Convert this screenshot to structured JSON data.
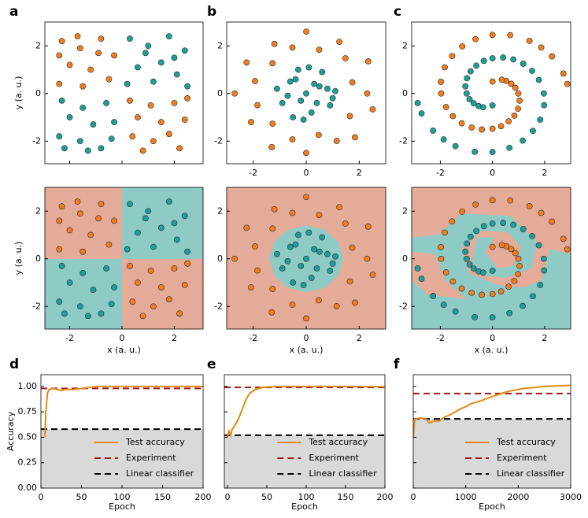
{
  "chart_data": [
    {
      "type": "scatter",
      "panel": "a",
      "ylabel": "y (a. u.)",
      "xlabel": "x (a. u.)",
      "xtick_labels_top": false,
      "xlim": [
        -2.95,
        3.1
      ],
      "ylim": [
        -2.95,
        3
      ],
      "xticks": [
        -2,
        0,
        2
      ],
      "yticks": [
        -2,
        0,
        2
      ],
      "background": "#e3ab98",
      "region_color": "#8ecbc7",
      "regions": [
        [
          [
            0,
            0
          ],
          [
            3.1,
            0
          ],
          [
            3.1,
            3
          ],
          [
            0,
            3
          ]
        ],
        [
          [
            -2.95,
            -2.95
          ],
          [
            0,
            -2.95
          ],
          [
            0,
            0
          ],
          [
            -2.95,
            0
          ]
        ]
      ],
      "series": [
        {
          "color": "#f07d1f",
          "x": [
            -2.3,
            -1.6,
            -0.8,
            -0.3,
            -2.0,
            -1.2,
            -0.5,
            -2.4,
            -1.5,
            -0.9,
            -2.4,
            -1.7,
            0.3,
            1.1,
            2.0,
            2.4,
            1.5,
            0.6,
            0.4,
            1.2,
            2.2,
            1.8,
            0.8,
            2.5
          ],
          "values": [
            2.2,
            1.9,
            2.3,
            1.6,
            1.2,
            1.0,
            0.6,
            0.4,
            0.3,
            1.7,
            1.6,
            2.4,
            -0.3,
            -0.5,
            -0.4,
            -1.1,
            -1.2,
            -1.0,
            -1.8,
            -2.0,
            -2.3,
            -1.7,
            -2.4,
            -0.2
          ]
        },
        {
          "color": "#1f9e98",
          "x": [
            0.3,
            1.0,
            1.8,
            2.4,
            1.5,
            0.6,
            0.2,
            1.2,
            2.1,
            2.5,
            0.9,
            2.0,
            -2.3,
            -1.5,
            -0.6,
            -0.3,
            -1.1,
            -2.0,
            -2.4,
            -1.6,
            -0.8,
            -0.4,
            -1.3,
            -2.2
          ],
          "values": [
            2.3,
            2.0,
            2.4,
            1.8,
            1.3,
            1.1,
            0.4,
            0.5,
            0.8,
            0.3,
            1.7,
            1.5,
            -0.3,
            -0.6,
            -0.4,
            -1.2,
            -1.3,
            -1.0,
            -1.8,
            -2.0,
            -2.3,
            -1.9,
            -2.4,
            -2.3
          ]
        }
      ]
    },
    {
      "type": "scatter",
      "panel": "b",
      "xlabel": "x (a. u.)",
      "xtick_labels_top": true,
      "xlim": [
        -3,
        3
      ],
      "ylim": [
        -2.95,
        3
      ],
      "xticks": [
        -2,
        0,
        2
      ],
      "yticks": [
        -2,
        0,
        2
      ],
      "background": "#e3ab98",
      "region_color": "#8ecbc7",
      "regions": [
        [
          [
            1.4,
            0
          ],
          [
            1.21,
            0.7
          ],
          [
            0.7,
            1.21
          ],
          [
            0,
            1.4
          ],
          [
            -0.7,
            1.21
          ],
          [
            -1.21,
            0.7
          ],
          [
            -1.4,
            0
          ],
          [
            -1.21,
            -0.7
          ],
          [
            -0.7,
            -1.21
          ],
          [
            0,
            -1.4
          ],
          [
            0.7,
            -1.21
          ],
          [
            1.21,
            -0.7
          ]
        ]
      ],
      "series": [
        {
          "color": "#f07d1f",
          "x": [
            2.3,
            1.74,
            2.34,
            1.48,
            1.25,
            0.49,
            0,
            -0.52,
            -1.2,
            -1.27,
            -2.25,
            -1.93,
            -2.7,
            -1.84,
            -2.08,
            -1.27,
            -1.3,
            -0.52,
            0,
            0.47,
            1.15,
            1.84,
            1.65,
            2.51
          ],
          "values": [
            0,
            0.47,
            1.35,
            1.48,
            2.17,
            1.84,
            2.6,
            1.93,
            2.08,
            1.27,
            1.3,
            0.52,
            0,
            -0.49,
            -1.2,
            -1.27,
            -2.25,
            -1.93,
            -2.5,
            -1.74,
            -1.99,
            -1.84,
            -0.95,
            -0.67
          ]
        },
        {
          "color": "#1f9e98",
          "x": [
            0,
            0.5,
            -0.6,
            0.2,
            -0.9,
            0.9,
            -0.3,
            0.6,
            1.1,
            -1.1,
            -0.5,
            0.3,
            -0.2,
            0.8,
            -0.7,
            0.1,
            0.4,
            -0.4,
            1.0,
            -0.1
          ],
          "values": [
            0,
            0.3,
            0.5,
            -0.8,
            -0.4,
            -0.5,
            1.0,
            0.9,
            0.1,
            0.2,
            -1.0,
            0.4,
            -0.3,
            0.2,
            -0.1,
            1.1,
            -0.4,
            0.6,
            -0.2,
            -1.1
          ]
        }
      ]
    },
    {
      "type": "scatter",
      "panel": "c",
      "xlabel": "x (a. u.)",
      "xtick_labels_top": true,
      "xlim": [
        -3.1,
        3
      ],
      "ylim": [
        -2.95,
        3
      ],
      "xticks": [
        -2,
        0,
        2
      ],
      "yticks": [
        -2,
        0,
        2
      ],
      "background": "#8ecbc7",
      "region_color": "#e3ab98",
      "regions": [
        [
          [
            -3.1,
            3
          ],
          [
            3,
            3
          ],
          [
            3,
            0.2
          ],
          [
            2.2,
            0.4
          ],
          [
            1.9,
            -0.9
          ],
          [
            1.2,
            -1.2
          ],
          [
            0.2,
            -1.1
          ],
          [
            -0.9,
            -0.6
          ],
          [
            -1.2,
            0.4
          ],
          [
            -0.4,
            1.2
          ],
          [
            0.6,
            1.1
          ],
          [
            1.1,
            0.5
          ],
          [
            0.8,
            -0.3
          ],
          [
            0.2,
            -0.4
          ],
          [
            -0.3,
            0.3
          ],
          [
            0.1,
            0.9
          ],
          [
            -0.6,
            0.9
          ],
          [
            -0.8,
            -0.1
          ],
          [
            -0.4,
            -0.7
          ],
          [
            0.5,
            -0.8
          ],
          [
            1.5,
            -0.4
          ],
          [
            1.7,
            0.7
          ],
          [
            0.7,
            1.8
          ],
          [
            -1.2,
            1.9
          ],
          [
            -2.1,
            1.0
          ],
          [
            -3.1,
            0.9
          ]
        ],
        [
          [
            -3.1,
            0.3
          ],
          [
            -2.2,
            0.2
          ],
          [
            -1.8,
            -0.9
          ],
          [
            -1.0,
            -1.7
          ],
          [
            -2.5,
            -1.5
          ],
          [
            -3.1,
            -0.9
          ]
        ]
      ],
      "series": [
        {
          "color": "#f07d1f",
          "x": [
            2.87,
            2.72,
            2.28,
            1.87,
            1.42,
            0.68,
            0,
            -0.65,
            -1.16,
            -1.55,
            -1.83,
            -1.98,
            -1.97,
            -1.78,
            -1.52,
            -1.18,
            -0.8,
            -0.41,
            0,
            0.33,
            0.62,
            0.84,
            0.98,
            1.04,
            0.99,
            0.88,
            0.72,
            0.53,
            0.36,
            0
          ],
          "values": [
            0.4,
            0.84,
            1.56,
            1.93,
            2.21,
            2.45,
            2.46,
            2.28,
            1.98,
            1.57,
            1.1,
            0.49,
            0,
            -0.57,
            -0.95,
            -1.25,
            -1.43,
            -1.51,
            -1.48,
            -1.37,
            -1.17,
            -0.93,
            -0.64,
            -0.3,
            0,
            0.24,
            0.41,
            0.53,
            0.58,
            0.5
          ]
        },
        {
          "color": "#1f9e98",
          "x": [
            -2.87,
            -2.72,
            -2.28,
            -1.87,
            -1.42,
            -0.68,
            0,
            0.65,
            1.16,
            1.55,
            1.83,
            1.98,
            1.97,
            1.78,
            1.52,
            1.18,
            0.8,
            0.41,
            0,
            -0.33,
            -0.62,
            -0.84,
            -0.98,
            -1.04,
            -0.99,
            -0.88,
            -0.72,
            -0.53,
            -0.36,
            0
          ],
          "values": [
            -0.4,
            -0.84,
            -1.56,
            -1.93,
            -2.21,
            -2.45,
            -2.46,
            -2.28,
            -1.98,
            -1.57,
            -1.1,
            -0.49,
            0,
            0.57,
            0.95,
            1.25,
            1.43,
            1.51,
            1.48,
            1.37,
            1.17,
            0.93,
            0.64,
            0.3,
            0,
            -0.24,
            -0.41,
            -0.53,
            -0.58,
            -0.5
          ]
        }
      ]
    },
    {
      "type": "line",
      "panel": "d",
      "xlabel": "Epoch",
      "ylabel": "Accuracy",
      "xlim": [
        0,
        200
      ],
      "ylim": [
        0,
        1.115
      ],
      "xticks": [
        0,
        50,
        100,
        150,
        200
      ],
      "yticks": [
        {
          "value": 0,
          "label": "0.00"
        },
        {
          "value": 0.25,
          "label": "0.25"
        },
        {
          "value": 0.5,
          "label": "0.50"
        },
        {
          "value": 0.75,
          "label": "0.75"
        },
        {
          "value": 1,
          "label": "1.00"
        }
      ],
      "series": [
        {
          "name": "Test accuracy",
          "color": "#e08a14",
          "x": [
            5,
            6,
            8,
            10,
            15,
            20,
            25,
            30,
            40,
            50,
            60,
            70,
            100,
            150,
            200
          ],
          "values": [
            0.5,
            0.75,
            0.93,
            0.97,
            0.98,
            0.97,
            0.96,
            0.97,
            0.97,
            0.98,
            0.99,
            1.0,
            1.0,
            1.0,
            1.0
          ]
        }
      ],
      "reference_lines": [
        {
          "name": "Experiment",
          "color": "#a31818",
          "value": 0.98
        },
        {
          "name": "Linear classifier",
          "color": "#000000",
          "value": 0.58,
          "shade": "#d9d9d9"
        }
      ]
    },
    {
      "type": "line",
      "panel": "e",
      "xlabel": "Epoch",
      "ytick_labels": false,
      "xlim": [
        -4,
        200
      ],
      "ylim": [
        0,
        1.115
      ],
      "xticks": [
        0,
        50,
        100,
        150,
        200
      ],
      "yticks": [
        0,
        0.25,
        0.5,
        0.75,
        1
      ],
      "series": [
        {
          "name": "Test accuracy",
          "color": "#e08a14",
          "x": [
            0,
            2,
            4,
            6,
            8,
            12,
            16,
            20,
            24,
            28,
            35,
            45,
            60,
            100,
            150,
            200
          ],
          "values": [
            0.5,
            0.56,
            0.52,
            0.58,
            0.6,
            0.65,
            0.72,
            0.8,
            0.88,
            0.93,
            0.97,
            0.99,
            1.0,
            1.0,
            1.0,
            0.997
          ]
        }
      ],
      "reference_lines": [
        {
          "name": "Experiment",
          "color": "#a31818",
          "value": 0.99
        },
        {
          "name": "Linear classifier",
          "color": "#000000",
          "value": 0.52,
          "shade": "#d9d9d9"
        }
      ]
    },
    {
      "type": "line",
      "panel": "f",
      "xlabel": "Epoch",
      "ytick_labels": false,
      "xlim": [
        0,
        3000
      ],
      "ylim": [
        0,
        1.115
      ],
      "xticks": [
        0,
        1000,
        2000,
        3000
      ],
      "yticks": [
        0,
        0.25,
        0.5,
        0.75,
        1
      ],
      "series": [
        {
          "name": "Test accuracy",
          "color": "#e08a14",
          "x": [
            0,
            30,
            150,
            250,
            300,
            400,
            500,
            600,
            700,
            800,
            900,
            1000,
            1100,
            1300,
            1500,
            1800,
            2100,
            2500,
            3000
          ],
          "values": [
            0.5,
            0.68,
            0.69,
            0.68,
            0.64,
            0.66,
            0.66,
            0.7,
            0.72,
            0.75,
            0.78,
            0.8,
            0.83,
            0.86,
            0.9,
            0.95,
            0.98,
            1.0,
            1.01
          ]
        }
      ],
      "reference_lines": [
        {
          "name": "Experiment",
          "color": "#a31818",
          "value": 0.93
        },
        {
          "name": "Linear classifier",
          "color": "#000000",
          "value": 0.68,
          "shade": "#d9d9d9"
        }
      ]
    }
  ]
}
